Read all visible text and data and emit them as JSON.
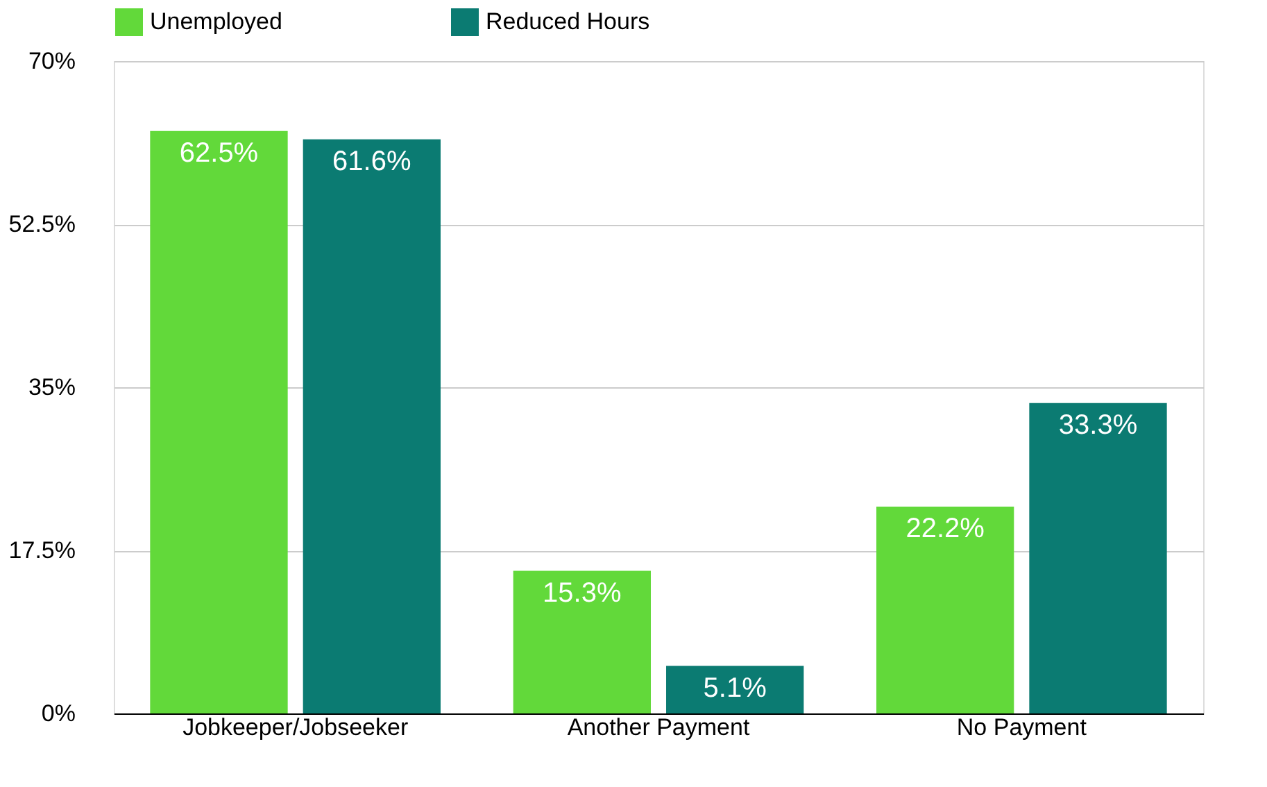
{
  "chart_data": {
    "type": "bar",
    "categories": [
      "Jobkeeper/Jobseeker",
      "Another Payment",
      "No Payment"
    ],
    "series": [
      {
        "name": "Unemployed",
        "color": "#62d93a",
        "values": [
          62.5,
          15.3,
          22.2
        ],
        "value_labels": [
          "62.5%",
          "15.3%",
          "22.2%"
        ]
      },
      {
        "name": "Reduced Hours",
        "color": "#0b7b72",
        "values": [
          61.6,
          5.1,
          33.3
        ],
        "value_labels": [
          "61.6%",
          "5.1%",
          "33.3%"
        ]
      }
    ],
    "ylim": [
      0,
      70
    ],
    "yticks": [
      {
        "value": 0,
        "label": "0%"
      },
      {
        "value": 17.5,
        "label": "17.5%"
      },
      {
        "value": 35,
        "label": "35%"
      },
      {
        "value": 52.5,
        "label": "52.5%"
      },
      {
        "value": 70,
        "label": "70%"
      }
    ],
    "grid": "y",
    "legend": "top"
  }
}
